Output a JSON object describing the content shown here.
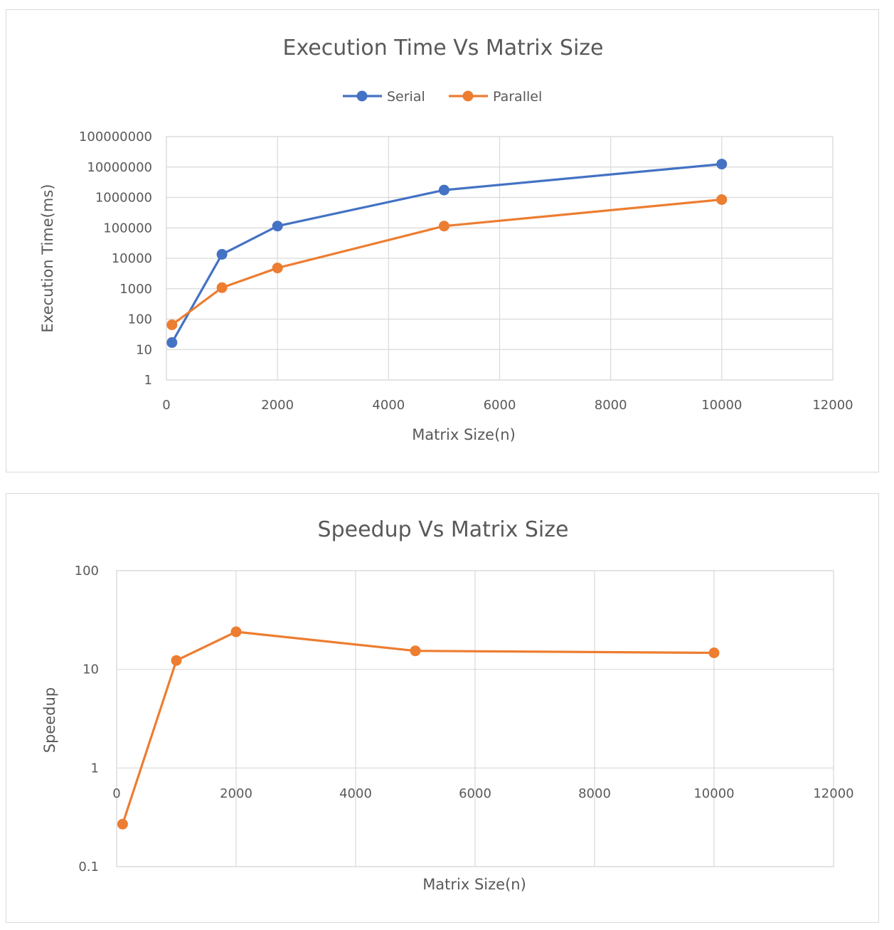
{
  "colors": {
    "serial": "#4472C4",
    "parallel": "#ED7D31",
    "text": "#595959",
    "grid": "#D9D9D9"
  },
  "chart_data": [
    {
      "type": "line",
      "title": "Execution Time Vs Matrix Size",
      "xlabel": "Matrix Size(n)",
      "ylabel": "Execution Time(ms)",
      "y_scale": "log",
      "xlim": [
        0,
        12000
      ],
      "ylim": [
        1,
        100000000
      ],
      "x_ticks": [
        "0",
        "2000",
        "4000",
        "6000",
        "8000",
        "10000",
        "12000"
      ],
      "y_ticks": [
        "1",
        "10",
        "100",
        "1000",
        "10000",
        "100000",
        "1000000",
        "10000000",
        "100000000"
      ],
      "grid": true,
      "legend_position": "top",
      "series": [
        {
          "name": "Serial",
          "color": "#4472C4",
          "x": [
            100,
            1000,
            2000,
            5000,
            10000
          ],
          "y": [
            17,
            13500,
            115000,
            1750000,
            12500000
          ]
        },
        {
          "name": "Parallel",
          "color": "#ED7D31",
          "x": [
            100,
            1000,
            2000,
            5000,
            10000
          ],
          "y": [
            65,
            1080,
            4800,
            115000,
            850000
          ]
        }
      ]
    },
    {
      "type": "line",
      "title": "Speedup Vs Matrix Size",
      "xlabel": "Matrix Size(n)",
      "ylabel": "Speedup",
      "y_scale": "log",
      "xlim": [
        0,
        12000
      ],
      "ylim": [
        0.1,
        100
      ],
      "x_ticks": [
        "0",
        "2000",
        "4000",
        "6000",
        "8000",
        "10000",
        "12000"
      ],
      "y_ticks": [
        "0.1",
        "1",
        "10",
        "100"
      ],
      "grid": true,
      "legend_position": "none",
      "series": [
        {
          "color": "#ED7D31",
          "x": [
            100,
            1000,
            2000,
            5000,
            10000
          ],
          "y": [
            0.27,
            12.3,
            24,
            15.4,
            14.7
          ]
        }
      ]
    }
  ]
}
